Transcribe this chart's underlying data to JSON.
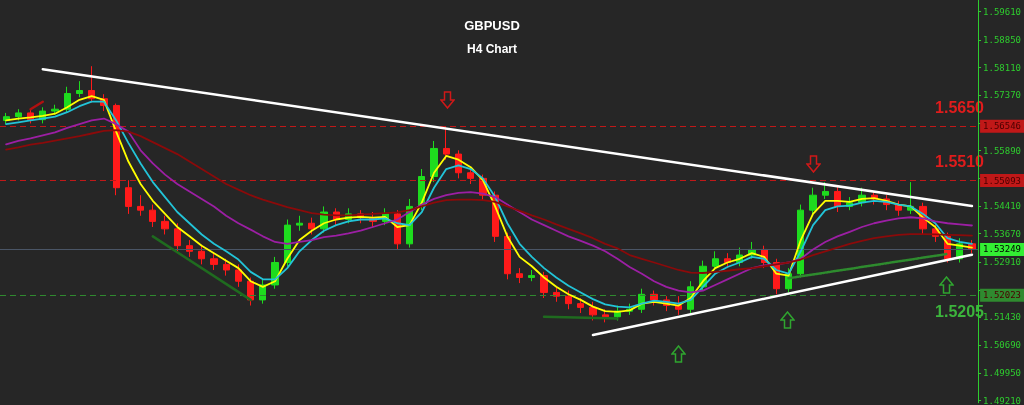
{
  "chart_data": {
    "type": "candlestick",
    "title": "GBPUSD",
    "subtitle": "H4 Chart",
    "categories": [
      null,
      null,
      null,
      null,
      null,
      null,
      null,
      null,
      null,
      null,
      null,
      null,
      null,
      null,
      null,
      null,
      null,
      null,
      null,
      null,
      null,
      null,
      null,
      null,
      null,
      null,
      null,
      null,
      null,
      null,
      null,
      null,
      null,
      null,
      null,
      null,
      null,
      null,
      null,
      null,
      null,
      null,
      null,
      null,
      null,
      null,
      null,
      null,
      null,
      null,
      null,
      null,
      null,
      null,
      null,
      null,
      null,
      null,
      null,
      null,
      null,
      null,
      null,
      null,
      null,
      null,
      null,
      null,
      null,
      null,
      null,
      null,
      null,
      null,
      null,
      null,
      null,
      null,
      null,
      null
    ],
    "series": [
      {
        "ohlc": [
          [
            1.567,
            1.569,
            1.566,
            1.568
          ],
          [
            1.568,
            1.57,
            1.567,
            1.569
          ],
          [
            1.569,
            1.57,
            1.5662,
            1.5672
          ],
          [
            1.5672,
            1.5705,
            1.5662,
            1.5695
          ],
          [
            1.5695,
            1.5712,
            1.5685,
            1.57
          ],
          [
            1.57,
            1.576,
            1.569,
            1.5742
          ],
          [
            1.5742,
            1.5775,
            1.5732,
            1.575
          ],
          [
            1.575,
            1.5815,
            1.5718,
            1.5728
          ],
          [
            1.5728,
            1.574,
            1.5695,
            1.571
          ],
          [
            1.571,
            1.5715,
            1.547,
            1.549
          ],
          [
            1.549,
            1.551,
            1.542,
            1.544
          ],
          [
            1.544,
            1.547,
            1.5415,
            1.543
          ],
          [
            1.543,
            1.5445,
            1.5385,
            1.54
          ],
          [
            1.54,
            1.5415,
            1.5365,
            1.538
          ],
          [
            1.538,
            1.5395,
            1.532,
            1.5335
          ],
          [
            1.5335,
            1.535,
            1.5305,
            1.532
          ],
          [
            1.532,
            1.5335,
            1.5285,
            1.53
          ],
          [
            1.53,
            1.5315,
            1.527,
            1.5285
          ],
          [
            1.5285,
            1.53,
            1.5255,
            1.527
          ],
          [
            1.527,
            1.5285,
            1.5225,
            1.524
          ],
          [
            1.524,
            1.525,
            1.5175,
            1.519
          ],
          [
            1.519,
            1.5245,
            1.518,
            1.523
          ],
          [
            1.523,
            1.5305,
            1.522,
            1.529
          ],
          [
            1.529,
            1.5405,
            1.528,
            1.539
          ],
          [
            1.539,
            1.5415,
            1.5375,
            1.5395
          ],
          [
            1.5395,
            1.541,
            1.5365,
            1.538
          ],
          [
            1.538,
            1.544,
            1.537,
            1.5425
          ],
          [
            1.5425,
            1.5435,
            1.539,
            1.5405
          ],
          [
            1.5405,
            1.5435,
            1.5395,
            1.542
          ],
          [
            1.542,
            1.543,
            1.5395,
            1.541
          ],
          [
            1.541,
            1.5425,
            1.5385,
            1.54
          ],
          [
            1.54,
            1.5435,
            1.539,
            1.542
          ],
          [
            1.542,
            1.543,
            1.5325,
            1.534
          ],
          [
            1.534,
            1.546,
            1.533,
            1.544
          ],
          [
            1.544,
            1.554,
            1.543,
            1.552
          ],
          [
            1.552,
            1.5615,
            1.5505,
            1.5595
          ],
          [
            1.5595,
            1.5652,
            1.5565,
            1.558
          ],
          [
            1.558,
            1.559,
            1.5515,
            1.553
          ],
          [
            1.553,
            1.5545,
            1.55,
            1.5515
          ],
          [
            1.5515,
            1.5525,
            1.5455,
            1.547
          ],
          [
            1.547,
            1.548,
            1.5345,
            1.536
          ],
          [
            1.536,
            1.537,
            1.5245,
            1.526
          ],
          [
            1.526,
            1.5275,
            1.5235,
            1.525
          ],
          [
            1.525,
            1.527,
            1.524,
            1.5255
          ],
          [
            1.5255,
            1.5265,
            1.5195,
            1.521
          ],
          [
            1.521,
            1.5225,
            1.5185,
            1.52
          ],
          [
            1.52,
            1.5215,
            1.5165,
            1.518
          ],
          [
            1.518,
            1.5195,
            1.5155,
            1.517
          ],
          [
            1.517,
            1.5185,
            1.5135,
            1.515
          ],
          [
            1.515,
            1.5165,
            1.513,
            1.5145
          ],
          [
            1.5145,
            1.5175,
            1.5135,
            1.516
          ],
          [
            1.516,
            1.518,
            1.515,
            1.5165
          ],
          [
            1.5165,
            1.522,
            1.5155,
            1.5205
          ],
          [
            1.5205,
            1.5215,
            1.5175,
            1.519
          ],
          [
            1.519,
            1.52,
            1.516,
            1.5175
          ],
          [
            1.5175,
            1.52,
            1.515,
            1.5165
          ],
          [
            1.5165,
            1.524,
            1.5155,
            1.5225
          ],
          [
            1.5225,
            1.5295,
            1.5215,
            1.528
          ],
          [
            1.528,
            1.532,
            1.527,
            1.53
          ],
          [
            1.53,
            1.5315,
            1.5275,
            1.529
          ],
          [
            1.529,
            1.533,
            1.528,
            1.531
          ],
          [
            1.531,
            1.5345,
            1.53,
            1.5325
          ],
          [
            1.5325,
            1.5335,
            1.5275,
            1.529
          ],
          [
            1.529,
            1.53,
            1.5205,
            1.522
          ],
          [
            1.522,
            1.5275,
            1.521,
            1.526
          ],
          [
            1.526,
            1.5445,
            1.525,
            1.543
          ],
          [
            1.543,
            1.549,
            1.542,
            1.547
          ],
          [
            1.547,
            1.5505,
            1.546,
            1.548
          ],
          [
            1.548,
            1.5495,
            1.5425,
            1.544
          ],
          [
            1.544,
            1.5465,
            1.543,
            1.545
          ],
          [
            1.545,
            1.549,
            1.544,
            1.547
          ],
          [
            1.547,
            1.548,
            1.5445,
            1.546
          ],
          [
            1.546,
            1.547,
            1.543,
            1.5445
          ],
          [
            1.5445,
            1.5455,
            1.5415,
            1.543
          ],
          [
            1.543,
            1.5505,
            1.542,
            1.544
          ],
          [
            1.544,
            1.545,
            1.5365,
            1.538
          ],
          [
            1.538,
            1.5395,
            1.5345,
            1.536
          ],
          [
            1.536,
            1.537,
            1.529,
            1.53
          ],
          [
            1.53,
            1.5355,
            1.529,
            1.534
          ],
          [
            1.534,
            1.535,
            1.5315,
            1.5325
          ]
        ]
      },
      {
        "type": "line",
        "color": "#ffff00",
        "values": [
          1.567,
          1.5675,
          1.5678,
          1.5682,
          1.5688,
          1.5705,
          1.5725,
          1.5735,
          1.5725,
          1.564,
          1.556,
          1.55,
          1.5455,
          1.542,
          1.5385,
          1.536,
          1.5335,
          1.5315,
          1.5295,
          1.5275,
          1.524,
          1.5225,
          1.524,
          1.53,
          1.535,
          1.5375,
          1.5395,
          1.5405,
          1.541,
          1.5412,
          1.541,
          1.5412,
          1.5385,
          1.539,
          1.545,
          1.553,
          1.5575,
          1.5565,
          1.5545,
          1.551,
          1.544,
          1.536,
          1.5305,
          1.528,
          1.525,
          1.5225,
          1.5205,
          1.519,
          1.5172,
          1.516,
          1.5158,
          1.5162,
          1.518,
          1.5185,
          1.518,
          1.5175,
          1.5195,
          1.524,
          1.5275,
          1.529,
          1.53,
          1.5315,
          1.5305,
          1.526,
          1.5255,
          1.535,
          1.542,
          1.5455,
          1.5455,
          1.5452,
          1.546,
          1.5462,
          1.5455,
          1.5445,
          1.544,
          1.541,
          1.5385,
          1.534,
          1.5335,
          1.533
        ]
      },
      {
        "type": "line",
        "color": "#22c4d8",
        "values": [
          1.566,
          1.5665,
          1.567,
          1.5675,
          1.568,
          1.5692,
          1.5708,
          1.572,
          1.572,
          1.567,
          1.561,
          1.5555,
          1.5505,
          1.5465,
          1.5425,
          1.5395,
          1.5365,
          1.534,
          1.532,
          1.5298,
          1.5265,
          1.5245,
          1.5245,
          1.5275,
          1.532,
          1.535,
          1.5375,
          1.539,
          1.54,
          1.5405,
          1.5405,
          1.5408,
          1.5395,
          1.539,
          1.5425,
          1.549,
          1.554,
          1.555,
          1.554,
          1.5515,
          1.5465,
          1.5395,
          1.534,
          1.5305,
          1.5275,
          1.525,
          1.5228,
          1.521,
          1.5192,
          1.5178,
          1.5172,
          1.517,
          1.518,
          1.5188,
          1.5185,
          1.518,
          1.519,
          1.5225,
          1.526,
          1.5278,
          1.529,
          1.5305,
          1.53,
          1.527,
          1.526,
          1.532,
          1.539,
          1.543,
          1.544,
          1.5442,
          1.545,
          1.5455,
          1.5452,
          1.5445,
          1.544,
          1.542,
          1.5395,
          1.5355,
          1.5345,
          1.534
        ]
      },
      {
        "type": "line",
        "color": "#9c1fa4",
        "values": [
          1.5606,
          1.5615,
          1.5622,
          1.563,
          1.5638,
          1.565,
          1.566,
          1.567,
          1.5675,
          1.566,
          1.564,
          1.559,
          1.5555,
          1.5525,
          1.55,
          1.548,
          1.546,
          1.544,
          1.5415,
          1.5395,
          1.5378,
          1.536,
          1.5345,
          1.534,
          1.5345,
          1.535,
          1.5358,
          1.5362,
          1.5368,
          1.5375,
          1.5385,
          1.5395,
          1.5405,
          1.5425,
          1.5445,
          1.546,
          1.547,
          1.5476,
          1.5478,
          1.5474,
          1.5465,
          1.5445,
          1.5425,
          1.5405,
          1.539,
          1.5375,
          1.536,
          1.5348,
          1.5335,
          1.532,
          1.53,
          1.5278,
          1.526,
          1.524,
          1.5225,
          1.5215,
          1.521,
          1.5215,
          1.523,
          1.5245,
          1.526,
          1.5275,
          1.5282,
          1.5285,
          1.529,
          1.53,
          1.5325,
          1.5345,
          1.536,
          1.5372,
          1.5385,
          1.5395,
          1.5402,
          1.5408,
          1.5411,
          1.5408,
          1.54,
          1.5395,
          1.5392,
          1.5389
        ]
      },
      {
        "type": "line",
        "color": "#8b0a0a",
        "values": [
          1.5592,
          1.5598,
          1.5605,
          1.561,
          1.5616,
          1.5622,
          1.5628,
          1.5635,
          1.5642,
          1.5644,
          1.564,
          1.5628,
          1.5612,
          1.5596,
          1.558,
          1.556,
          1.554,
          1.552,
          1.55,
          1.5485,
          1.547,
          1.5458,
          1.5448,
          1.5438,
          1.543,
          1.5422,
          1.5418,
          1.5416,
          1.5416,
          1.5418,
          1.542,
          1.5422,
          1.5424,
          1.543,
          1.544,
          1.545,
          1.5457,
          1.5458,
          1.5458,
          1.5457,
          1.5452,
          1.544,
          1.5428,
          1.5416,
          1.5405,
          1.5392,
          1.538,
          1.5368,
          1.5355,
          1.534,
          1.5328,
          1.531,
          1.53,
          1.529,
          1.528,
          1.527,
          1.5263,
          1.5262,
          1.5265,
          1.5268,
          1.5272,
          1.5275,
          1.528,
          1.5285,
          1.529,
          1.5298,
          1.531,
          1.532,
          1.533,
          1.534,
          1.5348,
          1.5355,
          1.536,
          1.5364,
          1.5366,
          1.5366,
          1.5365,
          1.5364,
          1.5363,
          1.5362
        ]
      },
      {
        "type": "line",
        "color": "#ffffff",
        "values": [
          null,
          null,
          null,
          1.5807,
          null,
          null,
          null,
          null,
          null,
          null,
          null,
          null,
          null,
          null,
          null,
          null,
          null,
          null,
          null,
          null,
          null,
          null,
          null,
          null,
          null,
          null,
          null,
          null,
          null,
          null,
          null,
          null,
          null,
          null,
          null,
          null,
          null,
          null,
          null,
          null,
          null,
          null,
          null,
          null,
          null,
          null,
          null,
          null,
          null,
          null,
          null,
          null,
          null,
          null,
          null,
          null,
          null,
          null,
          null,
          null,
          null,
          null,
          null,
          null,
          null,
          null,
          null,
          null,
          null,
          null,
          null,
          null,
          null,
          null,
          null,
          null,
          null,
          null,
          null,
          1.5441
        ]
      },
      {
        "type": "line",
        "color": "#ffffff",
        "values": [
          null,
          null,
          null,
          null,
          null,
          null,
          null,
          null,
          null,
          null,
          null,
          null,
          null,
          null,
          null,
          null,
          null,
          null,
          null,
          null,
          null,
          null,
          null,
          null,
          null,
          null,
          null,
          null,
          null,
          null,
          null,
          null,
          null,
          null,
          null,
          null,
          null,
          null,
          null,
          null,
          null,
          null,
          null,
          null,
          null,
          null,
          null,
          null,
          1.5096,
          null,
          null,
          null,
          null,
          null,
          null,
          null,
          null,
          null,
          null,
          null,
          null,
          null,
          null,
          null,
          null,
          null,
          null,
          null,
          null,
          null,
          null,
          null,
          null,
          null,
          null,
          null,
          null,
          null,
          null,
          1.5311
        ]
      },
      {
        "type": "line",
        "color": "#1f6b1f",
        "values": [
          null,
          null,
          null,
          null,
          null,
          null,
          null,
          null,
          null,
          null,
          null,
          null,
          1.536,
          null,
          null,
          null,
          null,
          null,
          null,
          null,
          1.519,
          null,
          null,
          null,
          null,
          null,
          null,
          null,
          null,
          null,
          null,
          null,
          null,
          null,
          null,
          null,
          null,
          null,
          null,
          null,
          null,
          null,
          null,
          null,
          null,
          null,
          null,
          null,
          null,
          null,
          null,
          null,
          null,
          null,
          null,
          null,
          null,
          null,
          null,
          null,
          null,
          null,
          null,
          null,
          null,
          null,
          null,
          null,
          null,
          null,
          null,
          null,
          null,
          null,
          null,
          null,
          null,
          null,
          null,
          null
        ]
      },
      {
        "type": "line",
        "color": "#1f6b1f",
        "values": [
          null,
          null,
          null,
          null,
          null,
          null,
          null,
          null,
          null,
          null,
          null,
          null,
          null,
          null,
          null,
          null,
          null,
          null,
          null,
          null,
          null,
          null,
          null,
          null,
          null,
          null,
          null,
          null,
          null,
          null,
          null,
          null,
          null,
          null,
          null,
          null,
          null,
          null,
          null,
          null,
          null,
          null,
          null,
          null,
          1.5145,
          null,
          null,
          null,
          null,
          null,
          1.514,
          null,
          null,
          null,
          null,
          null,
          null,
          null,
          null,
          null,
          null,
          null,
          null,
          null,
          null,
          null,
          null,
          null,
          null,
          null,
          null,
          null,
          null,
          null,
          null,
          null,
          null,
          null,
          null,
          null
        ]
      },
      {
        "type": "line",
        "color": "#b01010",
        "values": [
          null,
          null,
          1.57,
          1.572,
          null,
          null,
          null,
          null,
          null,
          null,
          null,
          null,
          null,
          null,
          null,
          null,
          null,
          null,
          null,
          null,
          null,
          null,
          null,
          null,
          null,
          null,
          null,
          null,
          null,
          null,
          null,
          null,
          null,
          null,
          null,
          null,
          null,
          null,
          null,
          null,
          null,
          null,
          null,
          null,
          null,
          null,
          null,
          null,
          null,
          null,
          null,
          null,
          null,
          null,
          null,
          null,
          null,
          null,
          null,
          null,
          null,
          null,
          null,
          null,
          null,
          null,
          null,
          null,
          null,
          null,
          null,
          null,
          null,
          null,
          null,
          null,
          null,
          null,
          null,
          null
        ]
      },
      {
        "type": "line",
        "color": "#2e8b2e",
        "line_style": "dotted",
        "values": [
          null,
          null,
          null,
          null,
          null,
          null,
          null,
          null,
          null,
          null,
          null,
          null,
          null,
          null,
          null,
          null,
          null,
          null,
          null,
          null,
          null,
          null,
          null,
          null,
          null,
          null,
          null,
          null,
          null,
          null,
          null,
          null,
          null,
          null,
          null,
          null,
          null,
          null,
          null,
          null,
          null,
          null,
          null,
          null,
          null,
          null,
          null,
          null,
          null,
          null,
          null,
          null,
          null,
          null,
          null,
          null,
          null,
          null,
          null,
          null,
          null,
          null,
          null,
          null,
          1.5248,
          null,
          null,
          null,
          null,
          null,
          null,
          null,
          null,
          null,
          null,
          null,
          null,
          1.5313,
          null,
          null
        ]
      }
    ],
    "ylim": [
      1.4915,
      1.5992
    ],
    "yticks": [
      {
        "value": 1.5961,
        "label": "1.59610"
      },
      {
        "value": 1.5885,
        "label": "1.58850"
      },
      {
        "value": 1.5811,
        "label": "1.58110"
      },
      {
        "value": 1.5737,
        "label": "1.57370"
      },
      {
        "value": 1.5663,
        "label": null
      },
      {
        "value": 1.5589,
        "label": "1.55890"
      },
      {
        "value": 1.5515,
        "label": null
      },
      {
        "value": 1.5441,
        "label": "1.54410"
      },
      {
        "value": 1.5367,
        "label": "1.53670"
      },
      {
        "value": 1.5291,
        "label": "1.52910"
      },
      {
        "value": 1.5217,
        "label": null
      },
      {
        "value": 1.5143,
        "label": "1.51430"
      },
      {
        "value": 1.5069,
        "label": "1.50690"
      },
      {
        "value": 1.4995,
        "label": "1.49950"
      },
      {
        "value": 1.4921,
        "label": "1.49210"
      }
    ],
    "ref_lines": [
      {
        "axis": "y",
        "value": 1.56546,
        "label": "1.56546",
        "color": "#c01818",
        "line_style": "dashed"
      },
      {
        "axis": "y",
        "value": 1.55093,
        "label": "1.55093",
        "color": "#c01818",
        "line_style": "dashed"
      },
      {
        "axis": "y",
        "value": 1.52023,
        "label": "1.52023",
        "color": "#2f8a2f",
        "line_style": "dashed"
      },
      {
        "axis": "y",
        "value": 1.53249,
        "label": "1.53249",
        "color": "#4a5566",
        "line_style": "solid"
      }
    ],
    "annotations": [
      "1.5650",
      "1.5510",
      "1.5205"
    ],
    "tick_labels": "y",
    "grid": false,
    "marker": "none",
    "line_style": "solid"
  }
}
